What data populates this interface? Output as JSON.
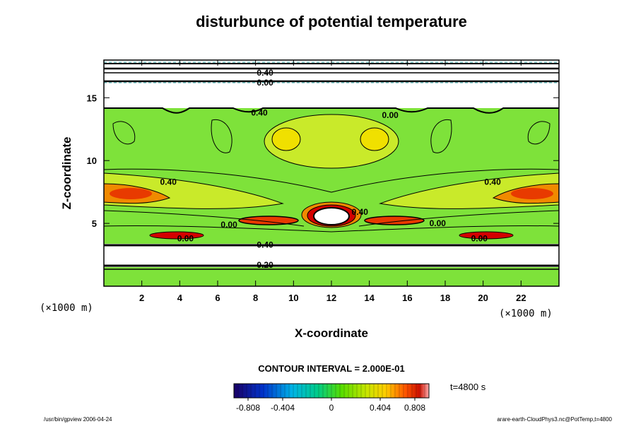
{
  "chart_data": {
    "type": "heatmap",
    "title": "disturbunce of potential temperature",
    "xlabel": "X-coordinate",
    "ylabel": "Z-coordinate",
    "x_unit": "(×1000 m)",
    "y_unit": "(×1000 m)",
    "xlim": [
      0,
      24
    ],
    "ylim": [
      0,
      18
    ],
    "x_ticks": [
      2,
      4,
      6,
      8,
      10,
      12,
      14,
      16,
      18,
      20,
      22
    ],
    "y_ticks": [
      5,
      10,
      15
    ],
    "colorbar": {
      "range": [
        -0.808,
        0.808
      ],
      "ticks": [
        -0.808,
        -0.404,
        0,
        0.404,
        0.808
      ],
      "tick_labels": [
        "-0.808",
        "-0.404",
        "0",
        "0.404",
        "0.808"
      ]
    },
    "contour_interval_text": "CONTOUR INTERVAL = 2.000E-01",
    "time_text": "t=4800 s",
    "contour_labels": [
      {
        "text": "0.40",
        "x": 3.4,
        "z": 8.3
      },
      {
        "text": "0.40",
        "x": 20.5,
        "z": 8.3
      },
      {
        "text": "0.40",
        "x": 13.5,
        "z": 5.9
      },
      {
        "text": "0.00",
        "x": 6.6,
        "z": 4.9
      },
      {
        "text": "0.00",
        "x": 17.6,
        "z": 5.0
      },
      {
        "text": "0.00",
        "x": 15.1,
        "z": 13.6
      },
      {
        "text": "0.00",
        "x": 4.3,
        "z": 3.8
      },
      {
        "text": "0.00",
        "x": 19.8,
        "z": 3.8
      },
      {
        "text": "0.40",
        "x": 8.2,
        "z": 13.8
      },
      {
        "text": "0.40",
        "x": 8.5,
        "z": 3.3
      },
      {
        "text": "0.20",
        "x": 8.5,
        "z": 1.7
      },
      {
        "text": "0.00",
        "x": 8.5,
        "z": 16.2
      },
      {
        "text": "0.40",
        "x": 8.5,
        "z": 17.0
      }
    ]
  },
  "footer": {
    "left": "/usr/bin/gpview 2006-04-24",
    "right": "arare-earth-CloudPhys3.nc@PotTemp,t=4800"
  }
}
